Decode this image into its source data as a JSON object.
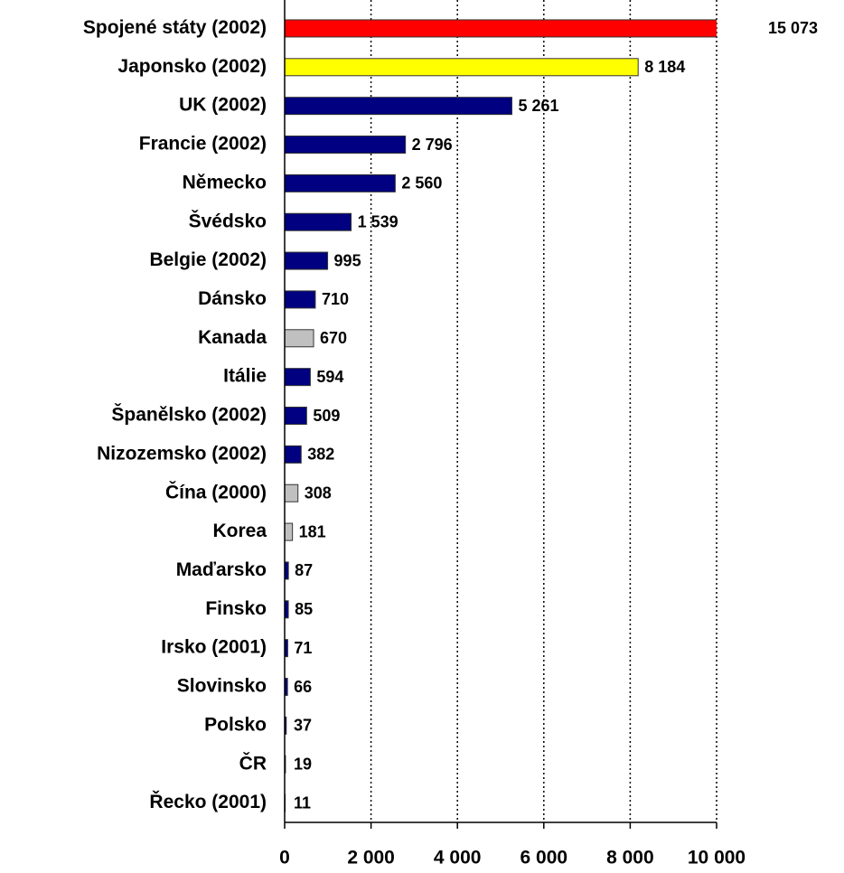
{
  "chart_data": {
    "type": "bar",
    "orientation": "horizontal",
    "categories": [
      "Spojené státy (2002)",
      "Japonsko (2002)",
      "UK (2002)",
      "Francie (2002)",
      "Německo",
      "Švédsko",
      "Belgie (2002)",
      "Dánsko",
      "Kanada",
      "Itálie",
      "Španělsko (2002)",
      "Nizozemsko (2002)",
      "Čína  (2000)",
      "Korea",
      "Maďarsko",
      "Finsko",
      "Irsko (2001)",
      "Slovinsko",
      "Polsko",
      "ČR",
      "Řecko (2001)"
    ],
    "values": [
      15073,
      8184,
      5261,
      2796,
      2560,
      1539,
      995,
      710,
      670,
      594,
      509,
      382,
      308,
      181,
      87,
      85,
      71,
      66,
      37,
      19,
      11
    ],
    "value_labels": [
      "15 073",
      "8 184",
      "5 261",
      "2 796",
      "2 560",
      "1 539",
      "995",
      "710",
      "670",
      "594",
      "509",
      "382",
      "308",
      "181",
      "87",
      "85",
      "71",
      "66",
      "37",
      "19",
      "11"
    ],
    "colors": [
      "#ff0000",
      "#ffff00",
      "#000080",
      "#000080",
      "#000080",
      "#000080",
      "#000080",
      "#000080",
      "#c0c0c0",
      "#000080",
      "#000080",
      "#000080",
      "#c0c0c0",
      "#c0c0c0",
      "#000080",
      "#000080",
      "#000080",
      "#000080",
      "#000080",
      "#000080",
      "#000080"
    ],
    "xlim": [
      0,
      10000
    ],
    "xticks": [
      0,
      {
        "value": 2000,
        "label": "2 000"
      },
      {
        "value": 4000,
        "label": "4 000"
      },
      {
        "value": 6000,
        "label": "6 000"
      },
      {
        "value": 8000,
        "label": "8 000"
      },
      {
        "value": 10000,
        "label": "10 000"
      }
    ],
    "grid": true
  }
}
